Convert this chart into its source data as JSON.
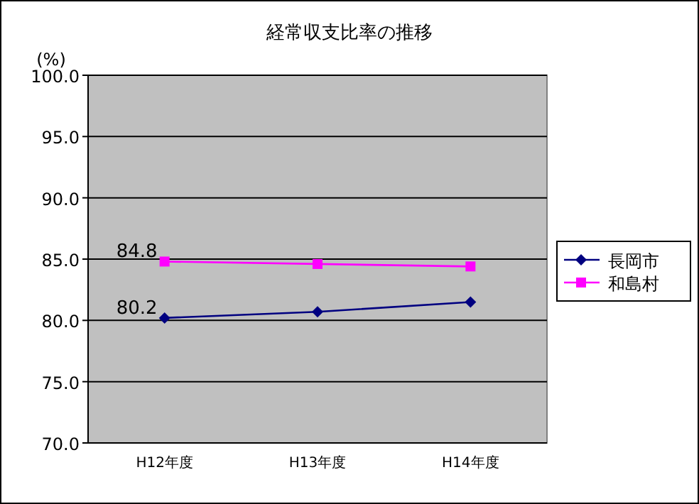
{
  "chart_data": {
    "type": "line",
    "title": "経常収支比率の推移",
    "ylabel": "(%)",
    "categories": [
      "H12年度",
      "H13年度",
      "H14年度"
    ],
    "series": [
      {
        "name": "長岡市",
        "color": "#000080",
        "values": [
          80.2,
          80.7,
          81.5
        ],
        "marker": "diamond",
        "value_labels": [
          "80.2",
          null,
          null
        ]
      },
      {
        "name": "和島村",
        "color": "#ff00ff",
        "values": [
          84.8,
          84.6,
          84.4
        ],
        "marker": "square",
        "value_labels": [
          "84.8",
          null,
          null
        ]
      }
    ],
    "ylim": [
      70,
      100
    ],
    "yticks": [
      {
        "value": 70,
        "label": "70.0"
      },
      {
        "value": 75,
        "label": "75.0"
      },
      {
        "value": 80,
        "label": "80.0"
      },
      {
        "value": 85,
        "label": "85.0"
      },
      {
        "value": 90,
        "label": "90.0"
      },
      {
        "value": 95,
        "label": "95.0"
      },
      {
        "value": 100,
        "label": "100.0"
      }
    ],
    "grid": "y",
    "legend": "right"
  }
}
